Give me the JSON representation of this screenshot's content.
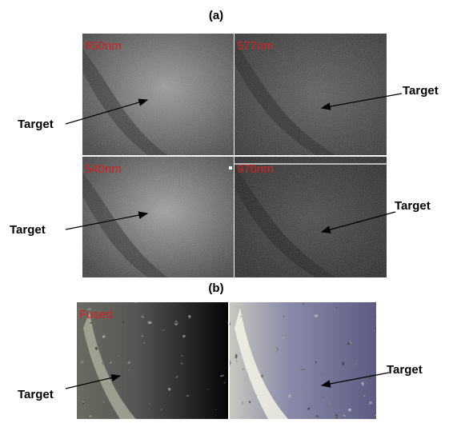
{
  "figure": {
    "panel_a": {
      "label": "(a)",
      "images": [
        {
          "caption": "650nm",
          "target": "Target"
        },
        {
          "caption": "577nm",
          "target": "Target"
        },
        {
          "caption": "540nm",
          "target": "Target"
        },
        {
          "caption": "970nm",
          "target": "Target"
        }
      ]
    },
    "panel_b": {
      "label": "(b)",
      "images": [
        {
          "caption": "Fused",
          "target": "Target"
        },
        {
          "target": "Target"
        }
      ]
    }
  }
}
